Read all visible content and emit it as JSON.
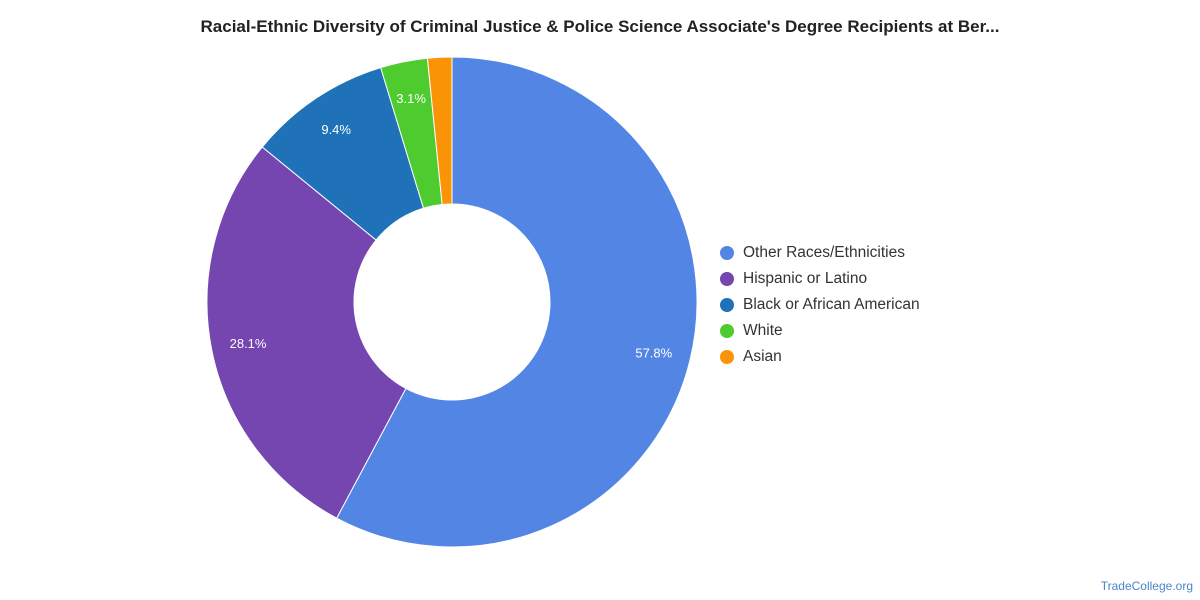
{
  "chart_data": {
    "type": "pie",
    "variant": "donut",
    "title": "Racial-Ethnic Diversity of Criminal Justice & Police Science Associate's Degree Recipients at Ber...",
    "start": "12 o'clock, clockwise",
    "legend_position": "right",
    "slices": [
      {
        "label": "Other Races/Ethnicities",
        "value": 57.8,
        "display": "57.8%",
        "color": "#5386e4"
      },
      {
        "label": "Hispanic or Latino",
        "value": 28.1,
        "display": "28.1%",
        "color": "#7545b0"
      },
      {
        "label": "Black or African American",
        "value": 9.4,
        "display": "9.4%",
        "color": "#1f72b8"
      },
      {
        "label": "White",
        "value": 3.1,
        "display": "3.1%",
        "color": "#4ecb2e"
      },
      {
        "label": "Asian",
        "value": 1.6,
        "display": "",
        "color": "#fa9406"
      }
    ]
  },
  "watermark": "TradeCollege.org"
}
